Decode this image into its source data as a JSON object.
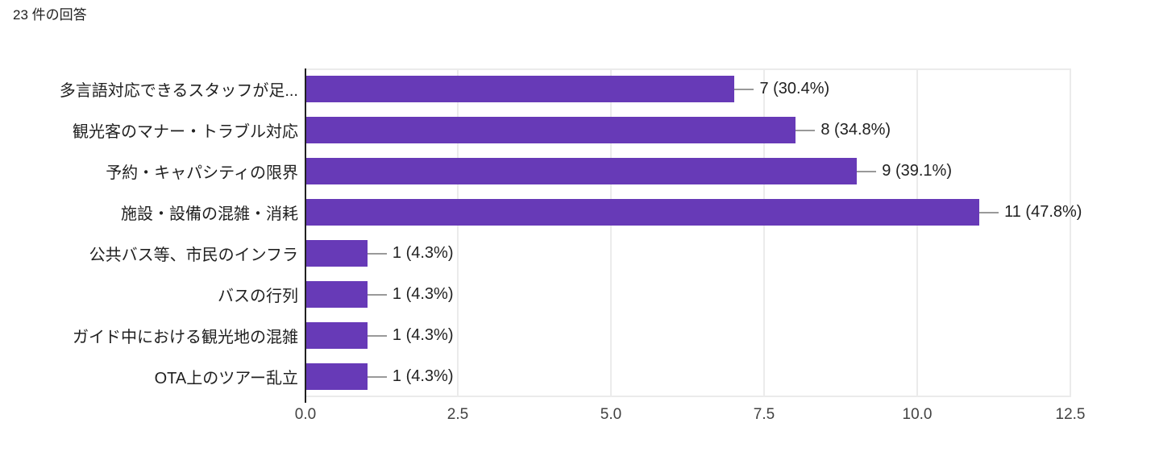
{
  "header": {
    "title": "23 件の回答"
  },
  "chart_data": {
    "type": "bar",
    "orientation": "horizontal",
    "title": "23 件の回答",
    "categories": [
      "多言語対応できるスタッフが足...",
      "観光客のマナー・トラブル対応",
      "予約・キャパシティの限界",
      "施設・設備の混雑・消耗",
      "公共バス等、市民のインフラ",
      "バスの行列",
      "ガイド中における観光地の混雑",
      "OTA上のツアー乱立"
    ],
    "values": [
      7,
      8,
      9,
      11,
      1,
      1,
      1,
      1
    ],
    "value_labels": [
      "7 (30.4%)",
      "8 (34.8%)",
      "9 (39.1%)",
      "11 (47.8%)",
      "1 (4.3%)",
      "1 (4.3%)",
      "1 (4.3%)",
      "1 (4.3%)"
    ],
    "x_ticks": [
      "0.0",
      "2.5",
      "5.0",
      "7.5",
      "10.0",
      "12.5"
    ],
    "xlim": [
      0,
      12.5
    ],
    "xlabel": "",
    "ylabel": "",
    "grid": true,
    "legend": "none",
    "total_responses": 23,
    "bar_color": "#673ab7",
    "axis_color": "#212121",
    "gridline_color": "#ebebeb",
    "leader_line_color": "#999999",
    "label_color": "#212121",
    "tick_color": "#424242",
    "background_color": "#ffffff"
  }
}
